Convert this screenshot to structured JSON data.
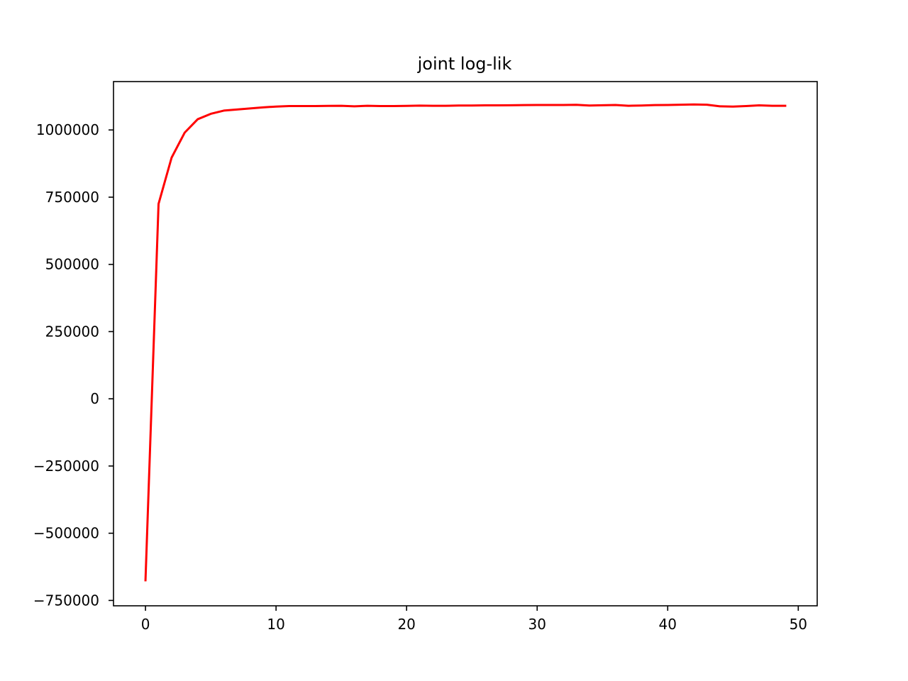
{
  "chart_data": {
    "type": "line",
    "title": "joint log-lik",
    "xlabel": "",
    "ylabel": "",
    "xlim": [
      -2.45,
      51.45
    ],
    "ylim": [
      -770000,
      1180000
    ],
    "xticks": [
      0,
      10,
      20,
      30,
      40,
      50
    ],
    "yticks": [
      -750000,
      -500000,
      -250000,
      0,
      250000,
      500000,
      750000,
      1000000
    ],
    "xtick_labels": [
      "0",
      "10",
      "20",
      "30",
      "40",
      "50"
    ],
    "ytick_labels": [
      "−750000",
      "−500000",
      "−250000",
      "0",
      "250000",
      "500000",
      "750000",
      "1000000"
    ],
    "grid": false,
    "line_color": "#ff0000",
    "series": [
      {
        "x": [
          0,
          1,
          2,
          3,
          4,
          5,
          6,
          7,
          8,
          9,
          10,
          11,
          12,
          13,
          14,
          15,
          16,
          17,
          18,
          19,
          20,
          21,
          22,
          23,
          24,
          25,
          26,
          27,
          28,
          29,
          30,
          31,
          32,
          33,
          34,
          35,
          36,
          37,
          38,
          39,
          40,
          41,
          42,
          43,
          44,
          45,
          46,
          47,
          48,
          49
        ],
        "values": [
          -675000,
          725000,
          897000,
          990000,
          1040000,
          1060000,
          1072000,
          1076000,
          1080000,
          1084000,
          1087000,
          1089000,
          1089000,
          1089000,
          1089500,
          1090000,
          1088000,
          1090000,
          1089000,
          1089000,
          1089500,
          1090500,
          1090000,
          1090000,
          1091000,
          1091000,
          1091500,
          1091500,
          1092000,
          1092500,
          1093000,
          1093000,
          1093000,
          1093500,
          1091000,
          1092000,
          1093000,
          1090000,
          1091000,
          1092500,
          1093000,
          1094000,
          1095000,
          1094000,
          1088000,
          1087000,
          1089000,
          1091500,
          1090000,
          1090000
        ]
      }
    ]
  }
}
